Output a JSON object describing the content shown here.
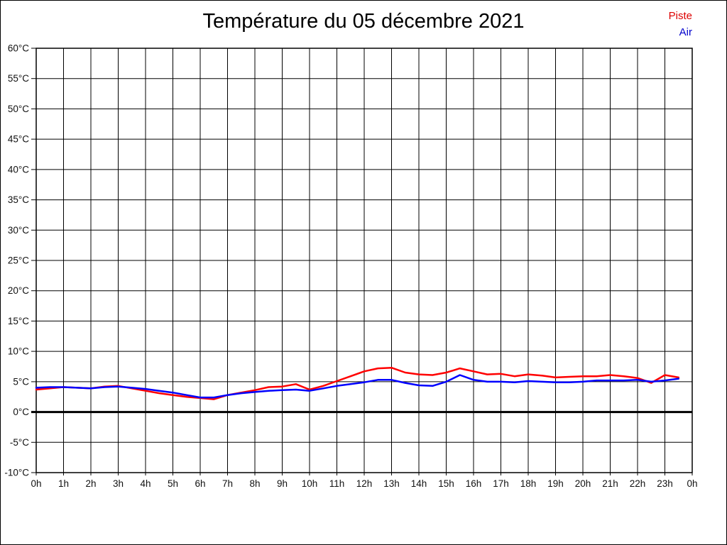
{
  "title": "Température du 05 décembre 2021",
  "legend": {
    "items": [
      {
        "label": "Piste",
        "color": "#dd0000"
      },
      {
        "label": "Air",
        "color": "#0000cc"
      }
    ]
  },
  "chart_data": {
    "type": "line",
    "title": "Température du 05 décembre 2021",
    "grid": true,
    "legend_position": "top-right",
    "x_axis": {
      "min": 0,
      "max": 24,
      "tick_step": 1,
      "tick_labels": [
        "0h",
        "1h",
        "2h",
        "3h",
        "4h",
        "5h",
        "6h",
        "7h",
        "8h",
        "9h",
        "10h",
        "11h",
        "12h",
        "13h",
        "14h",
        "15h",
        "16h",
        "17h",
        "18h",
        "19h",
        "20h",
        "21h",
        "22h",
        "23h",
        "0h"
      ]
    },
    "y_axis": {
      "min": -10,
      "max": 60,
      "tick_step": 5,
      "tick_labels": [
        "60°C",
        "55°C",
        "50°C",
        "45°C",
        "40°C",
        "35°C",
        "30°C",
        "25°C",
        "20°C",
        "15°C",
        "10°C",
        "5°C",
        "0°C",
        "-5°C",
        "-10°C"
      ],
      "zero_line_width": 3
    },
    "series": [
      {
        "name": "Piste",
        "color": "#ff0000",
        "x": [
          0,
          0.5,
          1,
          1.5,
          2,
          2.5,
          3,
          3.5,
          4,
          4.5,
          5,
          5.5,
          6,
          6.5,
          7,
          7.5,
          8,
          8.5,
          9,
          9.5,
          10,
          10.5,
          11,
          11.5,
          12,
          12.5,
          13,
          13.5,
          14,
          14.5,
          15,
          15.5,
          16,
          16.5,
          17,
          17.5,
          18,
          18.5,
          19,
          19.5,
          20,
          20.5,
          21,
          21.5,
          22,
          22.5,
          23,
          23.5
        ],
        "values": [
          3.7,
          3.9,
          4.1,
          4.0,
          3.9,
          4.2,
          4.3,
          3.9,
          3.5,
          3.1,
          2.8,
          2.5,
          2.3,
          2.1,
          2.8,
          3.2,
          3.6,
          4.1,
          4.2,
          4.6,
          3.7,
          4.3,
          5.1,
          5.9,
          6.7,
          7.2,
          7.3,
          6.5,
          6.2,
          6.1,
          6.5,
          7.2,
          6.7,
          6.2,
          6.3,
          5.9,
          6.2,
          6.0,
          5.7,
          5.8,
          5.9,
          5.9,
          6.1,
          5.9,
          5.6,
          4.8,
          6.1,
          5.7
        ]
      },
      {
        "name": "Air",
        "color": "#0000ff",
        "x": [
          0,
          0.5,
          1,
          1.5,
          2,
          2.5,
          3,
          3.5,
          4,
          4.5,
          5,
          5.5,
          6,
          6.5,
          7,
          7.5,
          8,
          8.5,
          9,
          9.5,
          10,
          10.5,
          11,
          11.5,
          12,
          12.5,
          13,
          13.5,
          14,
          14.5,
          15,
          15.5,
          16,
          16.5,
          17,
          17.5,
          18,
          18.5,
          19,
          19.5,
          20,
          20.5,
          21,
          21.5,
          22,
          22.5,
          23,
          23.5
        ],
        "values": [
          4.0,
          4.1,
          4.1,
          4.0,
          3.9,
          4.1,
          4.2,
          4.0,
          3.8,
          3.5,
          3.2,
          2.8,
          2.4,
          2.4,
          2.8,
          3.1,
          3.3,
          3.5,
          3.6,
          3.7,
          3.5,
          3.9,
          4.3,
          4.6,
          4.9,
          5.3,
          5.3,
          4.8,
          4.4,
          4.3,
          5.0,
          6.1,
          5.3,
          5.0,
          5.0,
          4.9,
          5.1,
          5.0,
          4.9,
          4.9,
          5.0,
          5.2,
          5.2,
          5.2,
          5.3,
          5.0,
          5.2,
          5.5
        ]
      }
    ]
  }
}
